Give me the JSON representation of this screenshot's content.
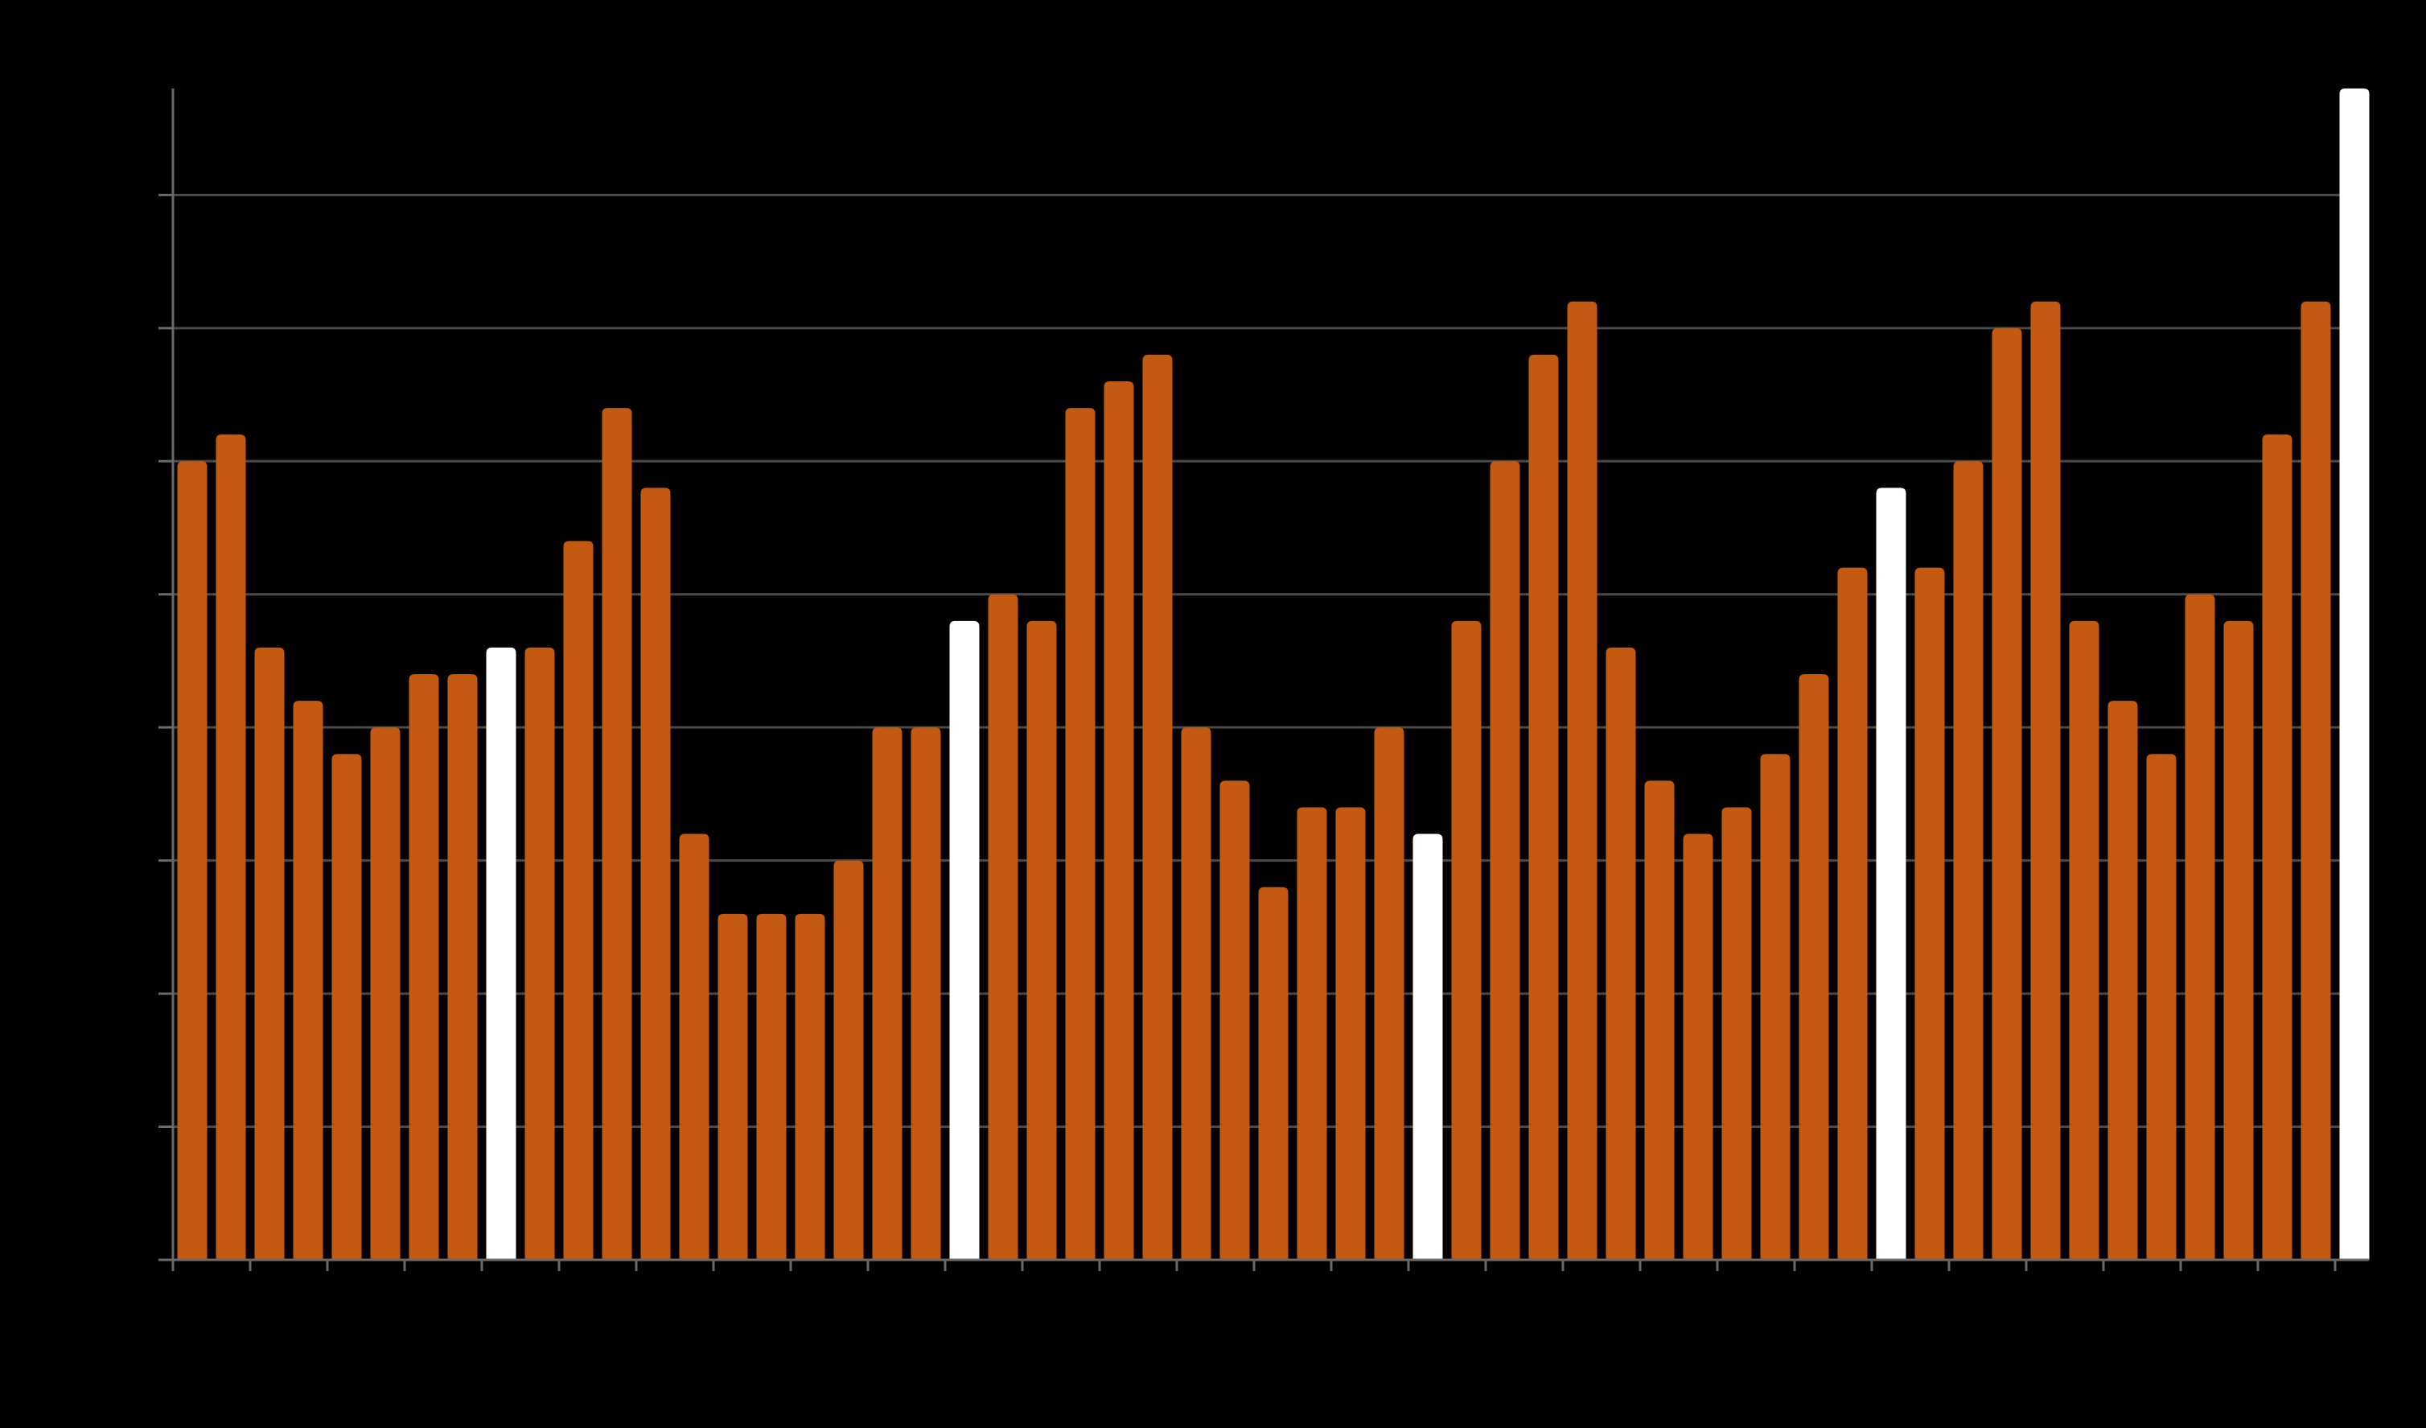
{
  "chart_data": {
    "type": "bar",
    "ylim": [
      0,
      44
    ],
    "grid": true,
    "y_gridlines": [
      5,
      10,
      15,
      20,
      25,
      30,
      35,
      40
    ],
    "x_tick_every": 2,
    "colors": {
      "default": "#c45911",
      "highlight": "#ffffff",
      "grid": "#4a4a4a",
      "axis": "#6a6a6a",
      "background": "#000000"
    },
    "values": [
      30,
      31,
      23,
      21,
      19,
      20,
      22,
      22,
      23,
      23,
      27,
      32,
      29,
      16,
      13,
      13,
      13,
      15,
      20,
      20,
      24,
      25,
      24,
      32,
      33,
      34,
      20,
      18,
      14,
      17,
      17,
      20,
      16,
      24,
      30,
      34,
      36,
      23,
      18,
      16,
      17,
      19,
      22,
      26,
      29,
      26,
      30,
      35,
      36,
      24,
      21,
      19,
      25,
      24,
      31,
      36,
      44
    ],
    "highlight": [
      false,
      false,
      false,
      false,
      false,
      false,
      false,
      false,
      true,
      false,
      false,
      false,
      false,
      false,
      false,
      false,
      false,
      false,
      false,
      false,
      true,
      false,
      false,
      false,
      false,
      false,
      false,
      false,
      false,
      false,
      false,
      false,
      true,
      false,
      false,
      false,
      false,
      false,
      false,
      false,
      false,
      false,
      false,
      false,
      true,
      false,
      false,
      false,
      false,
      false,
      false,
      false,
      false,
      false,
      false,
      false,
      true
    ]
  }
}
